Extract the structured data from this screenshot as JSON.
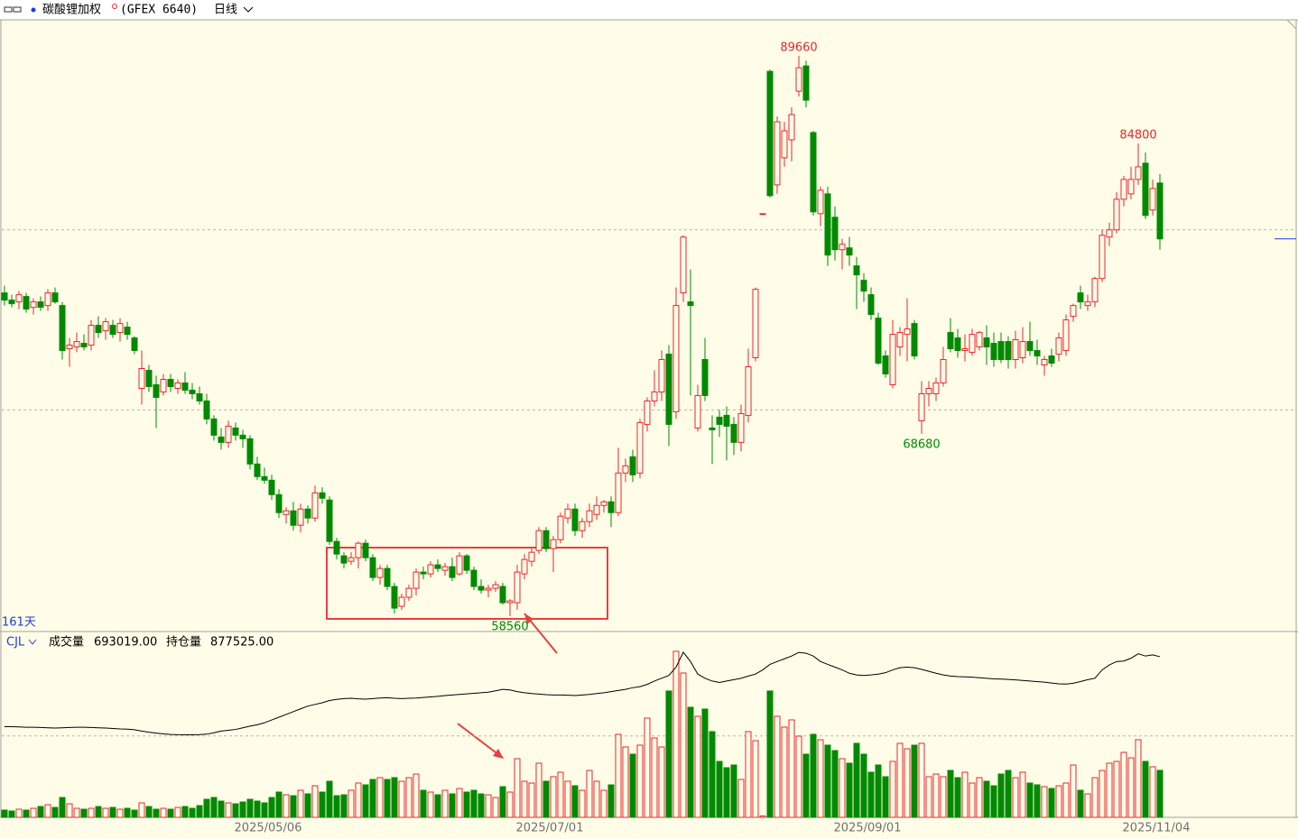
{
  "header": {
    "symbol": "碳酸锂加权",
    "code": "(GFEX 6640)",
    "period": "日线"
  },
  "chart_data": {
    "type": "candlestick",
    "days_label": "161天",
    "indicator": "CJL",
    "volume_name": "成交量",
    "volume_value_label": "693019.00",
    "oi_name": "持仓量",
    "oi_value_label": "877525.00",
    "up_color": "#e8262c",
    "down_color": "#008a00",
    "oi_color": "#000000",
    "last_line_color": "#1a3fd6",
    "ylim": [
      57700,
      91660
    ],
    "price_grid": [
      70000,
      80000
    ],
    "volume_lim": [
      0,
      2460000
    ],
    "volume_grid": [
      1200000
    ],
    "oi_lim": [
      300000,
      900000
    ],
    "categories": [
      null,
      null,
      null,
      null,
      null,
      null,
      null,
      null,
      null,
      null,
      null,
      null,
      null,
      null,
      null,
      null,
      null,
      null,
      null,
      null,
      null,
      null,
      null,
      null,
      null,
      null,
      null,
      null,
      null,
      null,
      null,
      null,
      null,
      null,
      null,
      null,
      "2025/05/06",
      null,
      null,
      null,
      null,
      null,
      null,
      null,
      null,
      null,
      null,
      null,
      null,
      null,
      null,
      null,
      null,
      null,
      null,
      null,
      null,
      null,
      null,
      null,
      null,
      null,
      null,
      null,
      null,
      null,
      null,
      null,
      null,
      null,
      null,
      null,
      null,
      null,
      null,
      "2025/07/01",
      null,
      null,
      null,
      null,
      null,
      null,
      null,
      null,
      null,
      null,
      null,
      null,
      null,
      null,
      null,
      null,
      null,
      null,
      null,
      null,
      null,
      null,
      null,
      null,
      null,
      null,
      null,
      null,
      null,
      null,
      null,
      null,
      null,
      null,
      null,
      null,
      null,
      null,
      null,
      null,
      null,
      null,
      null,
      "2025/09/01",
      null,
      null,
      null,
      null,
      null,
      null,
      null,
      null,
      null,
      null,
      null,
      null,
      null,
      null,
      null,
      null,
      null,
      null,
      null,
      null,
      null,
      null,
      null,
      null,
      null,
      null,
      null,
      null,
      null,
      null,
      null,
      null,
      null,
      null,
      null,
      null,
      null,
      null,
      null,
      "2025/11/04",
      null
    ],
    "candles": [
      [
        76500,
        76900,
        75800,
        76100
      ],
      [
        76100,
        76400,
        75700,
        75900
      ],
      [
        76000,
        76600,
        75600,
        76400
      ],
      [
        76300,
        76500,
        75400,
        75600
      ],
      [
        75700,
        76200,
        75300,
        76000
      ],
      [
        76000,
        76300,
        75500,
        75700
      ],
      [
        75800,
        76700,
        75500,
        76500
      ],
      [
        76500,
        76800,
        75900,
        76000
      ],
      [
        75800,
        76000,
        72800,
        73300
      ],
      [
        73400,
        74000,
        72400,
        73600
      ],
      [
        73500,
        74300,
        73200,
        73800
      ],
      [
        73700,
        74200,
        73300,
        73500
      ],
      [
        73600,
        75000,
        73300,
        74700
      ],
      [
        74700,
        75200,
        74000,
        74300
      ],
      [
        74400,
        75100,
        73900,
        74900
      ],
      [
        74700,
        75000,
        74000,
        74200
      ],
      [
        74300,
        75100,
        73800,
        74800
      ],
      [
        74600,
        74900,
        73900,
        74200
      ],
      [
        74000,
        74100,
        73100,
        73300
      ],
      [
        71200,
        73300,
        70300,
        72300
      ],
      [
        72200,
        72500,
        71000,
        71300
      ],
      [
        71400,
        71900,
        69000,
        70700
      ],
      [
        71000,
        72000,
        70800,
        71700
      ],
      [
        71700,
        72000,
        71000,
        71300
      ],
      [
        71200,
        71700,
        70900,
        71500
      ],
      [
        71500,
        72100,
        70900,
        71100
      ],
      [
        71100,
        71500,
        70600,
        70900
      ],
      [
        70900,
        71300,
        70300,
        70500
      ],
      [
        70500,
        70900,
        69200,
        69500
      ],
      [
        69500,
        69700,
        68300,
        68600
      ],
      [
        68500,
        69000,
        67800,
        68200
      ],
      [
        68200,
        69400,
        67900,
        69100
      ],
      [
        69000,
        69300,
        68300,
        68600
      ],
      [
        68600,
        68900,
        67900,
        68400
      ],
      [
        68400,
        68600,
        66700,
        67000
      ],
      [
        67000,
        67400,
        66100,
        66300
      ],
      [
        66300,
        66800,
        65900,
        66100
      ],
      [
        66100,
        66400,
        65000,
        65300
      ],
      [
        65300,
        65600,
        64000,
        64300
      ],
      [
        64200,
        64600,
        63700,
        64400
      ],
      [
        64400,
        64900,
        63300,
        63600
      ],
      [
        63600,
        64800,
        63200,
        64500
      ],
      [
        64500,
        64700,
        63700,
        64000
      ],
      [
        64000,
        65800,
        63800,
        65400
      ],
      [
        65400,
        65700,
        64800,
        65100
      ],
      [
        65000,
        65200,
        62500,
        62700
      ],
      [
        62700,
        62900,
        61700,
        62000
      ],
      [
        61900,
        62100,
        61200,
        61500
      ],
      [
        61600,
        62100,
        61400,
        61800
      ],
      [
        61800,
        62700,
        61200,
        62600
      ],
      [
        62600,
        62800,
        61600,
        61800
      ],
      [
        61800,
        62000,
        60500,
        60700
      ],
      [
        60700,
        61400,
        60300,
        61200
      ],
      [
        61200,
        61400,
        60000,
        60200
      ],
      [
        60200,
        60400,
        58700,
        59000
      ],
      [
        59100,
        59800,
        58900,
        59600
      ],
      [
        59600,
        60300,
        59400,
        60100
      ],
      [
        60100,
        61200,
        59700,
        61000
      ],
      [
        61000,
        61300,
        60600,
        60900
      ],
      [
        60900,
        61600,
        60700,
        61400
      ],
      [
        61400,
        61700,
        61000,
        61200
      ],
      [
        61100,
        61500,
        60800,
        61300
      ],
      [
        61300,
        61800,
        60500,
        60700
      ],
      [
        60900,
        62100,
        60800,
        61900
      ],
      [
        61900,
        62000,
        60900,
        61100
      ],
      [
        61100,
        61300,
        60000,
        60200
      ],
      [
        60200,
        60600,
        59800,
        60000
      ],
      [
        60000,
        60300,
        59600,
        60100
      ],
      [
        60100,
        60500,
        59900,
        60300
      ],
      [
        60200,
        60400,
        59200,
        59300
      ],
      [
        59300,
        59500,
        58560,
        59400
      ],
      [
        59300,
        61400,
        58900,
        61000
      ],
      [
        60900,
        62000,
        60600,
        61700
      ],
      [
        61600,
        62300,
        61300,
        62100
      ],
      [
        62200,
        63500,
        62000,
        63300
      ],
      [
        63300,
        63500,
        62100,
        62300
      ],
      [
        62300,
        63000,
        61000,
        62800
      ],
      [
        62800,
        64300,
        62600,
        64100
      ],
      [
        64000,
        64800,
        63700,
        64500
      ],
      [
        64500,
        64800,
        63000,
        63300
      ],
      [
        63300,
        64000,
        62900,
        63800
      ],
      [
        63800,
        64800,
        63500,
        64400
      ],
      [
        64200,
        65200,
        63900,
        64700
      ],
      [
        64700,
        65000,
        64300,
        64900
      ],
      [
        64900,
        65200,
        63500,
        64300
      ],
      [
        64300,
        67900,
        64100,
        66500
      ],
      [
        66500,
        67300,
        66000,
        66900
      ],
      [
        67400,
        67800,
        66000,
        66400
      ],
      [
        66500,
        69500,
        66200,
        69300
      ],
      [
        69200,
        70700,
        68800,
        70500
      ],
      [
        70500,
        72200,
        70200,
        71000
      ],
      [
        71000,
        73300,
        70500,
        72800
      ],
      [
        73100,
        73600,
        68000,
        69200
      ],
      [
        69900,
        76800,
        69500,
        75800
      ],
      [
        76500,
        79700,
        76000,
        79600
      ],
      [
        76000,
        77800,
        70800,
        75800
      ],
      [
        69000,
        71400,
        68800,
        70800
      ],
      [
        72800,
        74000,
        70500,
        70800
      ],
      [
        69000,
        69700,
        67000,
        68900
      ],
      [
        69600,
        70000,
        68500,
        69200
      ],
      [
        69700,
        70200,
        67200,
        69100
      ],
      [
        69200,
        69600,
        67500,
        68200
      ],
      [
        68200,
        70300,
        67700,
        69800
      ],
      [
        69700,
        73400,
        69300,
        72400
      ],
      [
        72900,
        76800,
        72700,
        76700
      ],
      [
        80900,
        80900,
        80900,
        80900
      ],
      [
        88800,
        88900,
        81800,
        81900
      ],
      [
        82500,
        86300,
        82000,
        86000
      ],
      [
        84000,
        86000,
        83500,
        85500
      ],
      [
        85000,
        86800,
        83800,
        86400
      ],
      [
        87700,
        89660,
        87400,
        89000
      ],
      [
        89100,
        89400,
        86800,
        87200
      ],
      [
        85400,
        85500,
        80800,
        81000
      ],
      [
        80900,
        82400,
        80200,
        82200
      ],
      [
        82000,
        82400,
        78000,
        78600
      ],
      [
        80700,
        81300,
        78300,
        78900
      ],
      [
        78900,
        79500,
        77800,
        79200
      ],
      [
        79000,
        79600,
        78000,
        78600
      ],
      [
        78000,
        78500,
        75600,
        77500
      ],
      [
        77200,
        77600,
        76000,
        76600
      ],
      [
        76400,
        76800,
        75000,
        75300
      ],
      [
        75100,
        75400,
        72500,
        72600
      ],
      [
        73000,
        73300,
        71800,
        72000
      ],
      [
        71400,
        75000,
        71200,
        74200
      ],
      [
        73500,
        74600,
        73000,
        74300
      ],
      [
        74200,
        76200,
        72700,
        74500
      ],
      [
        74800,
        75000,
        72800,
        73000
      ],
      [
        69400,
        71600,
        68680,
        70900
      ],
      [
        70900,
        71600,
        70200,
        71200
      ],
      [
        70900,
        71800,
        70500,
        71500
      ],
      [
        71500,
        73500,
        71300,
        72800
      ],
      [
        74300,
        75100,
        73200,
        73400
      ],
      [
        74000,
        74500,
        72900,
        73300
      ],
      [
        73300,
        74200,
        72700,
        73400
      ],
      [
        73200,
        74500,
        73000,
        74200
      ],
      [
        73500,
        74400,
        73300,
        74300
      ],
      [
        74000,
        74700,
        72500,
        73500
      ],
      [
        73700,
        74300,
        72400,
        72800
      ],
      [
        73800,
        74300,
        72600,
        72800
      ],
      [
        73800,
        74100,
        72300,
        72800
      ],
      [
        72800,
        74400,
        72300,
        73900
      ],
      [
        72900,
        74600,
        72600,
        73800
      ],
      [
        73800,
        74900,
        73000,
        73300
      ],
      [
        73300,
        73900,
        72500,
        73000
      ],
      [
        72500,
        73000,
        71900,
        72800
      ],
      [
        73000,
        73400,
        72400,
        72600
      ],
      [
        73100,
        74300,
        72700,
        74000
      ],
      [
        73300,
        75300,
        73000,
        75000
      ],
      [
        75200,
        75900,
        74900,
        75800
      ],
      [
        76500,
        76900,
        75600,
        76000
      ],
      [
        75800,
        76400,
        75500,
        76000
      ],
      [
        76000,
        77400,
        75700,
        77300
      ],
      [
        77300,
        80000,
        77100,
        79700
      ],
      [
        79600,
        80400,
        79100,
        80000
      ],
      [
        80000,
        82100,
        79800,
        81700
      ],
      [
        81700,
        83000,
        81300,
        82800
      ],
      [
        82000,
        83500,
        81700,
        82800
      ],
      [
        82800,
        84800,
        82500,
        83500
      ],
      [
        83700,
        84300,
        80600,
        80800
      ],
      [
        81100,
        82800,
        80800,
        82300
      ],
      [
        82600,
        83100,
        78900,
        79500
      ]
    ],
    "volume": [
      106400,
      93100,
      119700,
      106400,
      133000,
      159600,
      186200,
      146300,
      292600,
      199500,
      133000,
      119700,
      133000,
      159600,
      133000,
      146300,
      119700,
      133000,
      106400,
      212800,
      159600,
      119700,
      133000,
      119700,
      146300,
      159600,
      133000,
      172900,
      266000,
      292600,
      239400,
      212800,
      199500,
      226100,
      266000,
      239400,
      212800,
      292600,
      372400,
      332500,
      319200,
      399000,
      345800,
      465500,
      372400,
      532000,
      319200,
      332500,
      399000,
      505400,
      478800,
      558600,
      585200,
      558600,
      585200,
      532000,
      585200,
      638400,
      399000,
      372400,
      332500,
      399000,
      345800,
      425600,
      372400,
      399000,
      345800,
      332500,
      292600,
      452200,
      372400,
      864500,
      532000,
      505400,
      798000,
      532000,
      598500,
      665000,
      532000,
      465500,
      399000,
      691600,
      532000,
      399000,
      478800,
      1223600,
      1037400,
      931000,
      1064000,
      1463000,
      1170400,
      1037400,
      1862000,
      2447200,
      2128000,
      1622600,
      1489600,
      1596000,
      1263500,
      824600,
      731500,
      771400,
      558600,
      1263500,
      1130500,
      20000,
      1862000,
      1489600,
      1330000,
      1436400,
      1197000,
      931000,
      1223600,
      1143800,
      1064000,
      984200,
      864500,
      798000,
      1090600,
      931000,
      665000,
      771400,
      598500,
      824600,
      1090600,
      1010800,
      1064000,
      1090600,
      598500,
      638400,
      598500,
      691600,
      585200,
      665000,
      505400,
      585200,
      532000,
      465500,
      638400,
      691600,
      585200,
      665000,
      505400,
      478800,
      452200,
      425600,
      465500,
      505400,
      771400,
      399000,
      345800,
      585200,
      691600,
      798000,
      824600,
      957600,
      877800,
      1143800,
      824600,
      744800,
      693019
    ],
    "open_interest": [
      626100,
      626100,
      625000,
      624000,
      624000,
      623000,
      622000,
      621000,
      622000,
      623000,
      624000,
      624000,
      623000,
      622000,
      621000,
      619600,
      618000,
      617000,
      615000,
      610000,
      606000,
      603000,
      600000,
      598000,
      597000,
      596800,
      596800,
      597500,
      599000,
      604000,
      610000,
      613100,
      616000,
      622000,
      628000,
      633000,
      640000,
      650000,
      660000,
      670000,
      680000,
      690000,
      700000,
      706000,
      712000,
      720000,
      724000,
      727000,
      728000,
      726000,
      725000,
      727000,
      729000,
      730000,
      728000,
      727000,
      728000,
      729000,
      731000,
      733000,
      735000,
      738000,
      740000,
      742000,
      744000,
      746000,
      748000,
      750000,
      755000,
      760000,
      758000,
      752000,
      748000,
      745000,
      743000,
      741000,
      740000,
      740000,
      739000,
      738000,
      740000,
      742000,
      745000,
      748000,
      752000,
      756000,
      760000,
      766000,
      770000,
      778000,
      790000,
      800000,
      810000,
      840000,
      893500,
      860000,
      815000,
      800000,
      790000,
      785000,
      790000,
      795000,
      800000,
      808000,
      815000,
      830000,
      850000,
      860000,
      870000,
      880000,
      893000,
      890000,
      880000,
      860000,
      850000,
      840000,
      830000,
      818000,
      812000,
      810000,
      812000,
      815000,
      820000,
      830000,
      838000,
      840000,
      838000,
      832000,
      825000,
      818000,
      812000,
      808000,
      806000,
      805000,
      804000,
      802000,
      800000,
      798000,
      797000,
      796000,
      794000,
      792000,
      790000,
      788000,
      786000,
      783000,
      780000,
      779000,
      782000,
      788000,
      795000,
      800000,
      830000,
      848000,
      860000,
      862000,
      872000,
      888000,
      880000,
      884000,
      877525
    ]
  }
}
